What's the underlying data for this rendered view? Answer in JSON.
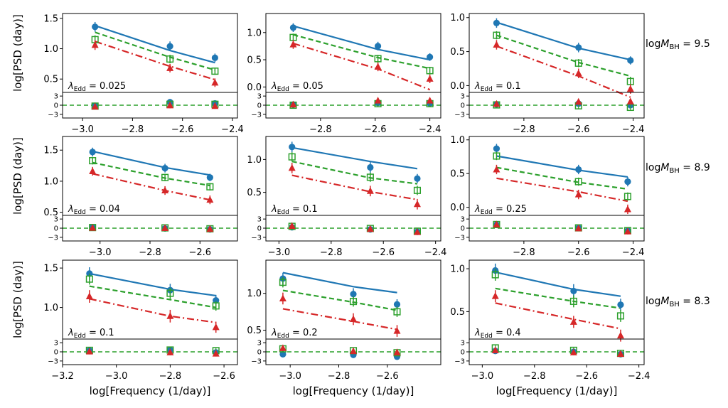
{
  "figure": {
    "y_label": "log[PSD (day)]",
    "x_label": "log[Frequency (1/day)]",
    "lambda_prefix": "λ",
    "lambda_sub": "Edd",
    "lambda_eq": " = ",
    "mass_prefix": "logM",
    "mass_sub": "BH",
    "mass_eq": " = ",
    "residual_ticks": [
      "3",
      "0",
      "−3"
    ],
    "residual_values": [
      3,
      0,
      -3
    ],
    "colors": {
      "blue": "#1f77b4",
      "green": "#2ca02c",
      "red": "#d62728"
    }
  },
  "rows": [
    {
      "mass_label": "9.5"
    },
    {
      "mass_label": "8.9"
    },
    {
      "mass_label": "8.3"
    }
  ],
  "chart_data": [
    {
      "type": "line",
      "row": 0,
      "col": 0,
      "lambda_label": "0.025",
      "xlim": [
        -3.08,
        -2.38
      ],
      "ylim": [
        0.28,
        1.58
      ],
      "x_ticks": [
        -3.0,
        -2.8,
        -2.6,
        -2.4
      ],
      "x_tick_labels": [
        "−3.0",
        "−2.8",
        "−2.6",
        "−2.4"
      ],
      "y_ticks": [
        0.5,
        1.0,
        1.5
      ],
      "y_tick_labels": [
        "0.5",
        "1.0",
        "1.5"
      ],
      "x": [
        -2.95,
        -2.65,
        -2.47
      ],
      "series": [
        {
          "color": "blue",
          "marker": "circle",
          "line": "solid",
          "points": [
            1.36,
            1.04,
            0.85
          ],
          "errors": [
            0.08,
            0.08,
            0.07
          ],
          "model": [
            1.38,
            0.97,
            0.77
          ],
          "residuals": [
            -0.2,
            1.0,
            0.6
          ]
        },
        {
          "color": "green",
          "marker": "square",
          "line": "dashed",
          "points": [
            1.15,
            0.83,
            0.63
          ],
          "errors": [
            0.07,
            0.07,
            0.06
          ],
          "model": [
            1.27,
            0.86,
            0.65
          ],
          "residuals": [
            -0.3,
            0.3,
            0.3
          ]
        },
        {
          "color": "red",
          "marker": "triangle",
          "line": "dashdot",
          "points": [
            1.06,
            0.68,
            0.44
          ],
          "errors": [
            0.08,
            0.07,
            0.07
          ],
          "model": [
            1.12,
            0.71,
            0.49
          ],
          "residuals": [
            -0.5,
            -0.1,
            -0.3
          ]
        }
      ]
    },
    {
      "type": "line",
      "row": 0,
      "col": 1,
      "lambda_label": "0.05",
      "xlim": [
        -3.0,
        -2.36
      ],
      "ylim": [
        -0.1,
        1.35
      ],
      "x_ticks": [
        -2.8,
        -2.6,
        -2.4
      ],
      "x_tick_labels": [
        "−2.8",
        "−2.6",
        "−2.4"
      ],
      "y_ticks": [
        0.0,
        0.5,
        1.0
      ],
      "y_tick_labels": [
        "0.0",
        "0.5",
        "1.0"
      ],
      "x": [
        -2.9,
        -2.59,
        -2.4
      ],
      "series": [
        {
          "color": "blue",
          "marker": "circle",
          "line": "solid",
          "points": [
            1.09,
            0.75,
            0.55
          ],
          "errors": [
            0.08,
            0.08,
            0.07
          ],
          "model": [
            1.12,
            0.69,
            0.5
          ],
          "residuals": [
            0.2,
            0.8,
            0.6
          ]
        },
        {
          "color": "green",
          "marker": "square",
          "line": "dashed",
          "points": [
            0.91,
            0.52,
            0.3
          ],
          "errors": [
            0.07,
            0.07,
            0.07
          ],
          "model": [
            0.96,
            0.54,
            0.34
          ],
          "residuals": [
            0.0,
            0.5,
            0.5
          ]
        },
        {
          "color": "red",
          "marker": "triangle",
          "line": "dashdot",
          "points": [
            0.78,
            0.37,
            0.15
          ],
          "errors": [
            0.08,
            0.08,
            0.08
          ],
          "model": [
            0.8,
            0.33,
            -0.05
          ],
          "residuals": [
            0.2,
            1.5,
            1.5
          ]
        }
      ]
    },
    {
      "type": "line",
      "row": 0,
      "col": 2,
      "lambda_label": "0.1",
      "xlim": [
        -3.0,
        -2.36
      ],
      "ylim": [
        -0.1,
        1.06
      ],
      "x_ticks": [
        -2.8,
        -2.6,
        -2.4
      ],
      "x_tick_labels": [
        "−2.8",
        "−2.6",
        "−2.4"
      ],
      "y_ticks": [
        0.0,
        0.5,
        1.0
      ],
      "y_tick_labels": [
        "0.0",
        "0.5",
        "1.0"
      ],
      "x": [
        -2.9,
        -2.6,
        -2.41
      ],
      "series": [
        {
          "color": "blue",
          "marker": "circle",
          "line": "solid",
          "points": [
            0.92,
            0.56,
            0.37
          ],
          "errors": [
            0.07,
            0.07,
            0.06
          ],
          "model": [
            0.93,
            0.55,
            0.38
          ],
          "residuals": [
            0.3,
            0.5,
            0.0
          ]
        },
        {
          "color": "green",
          "marker": "square",
          "line": "dashed",
          "points": [
            0.74,
            0.33,
            0.06
          ],
          "errors": [
            0.06,
            0.06,
            0.07
          ],
          "model": [
            0.74,
            0.34,
            0.14
          ],
          "residuals": [
            0.1,
            -0.2,
            -0.7
          ]
        },
        {
          "color": "red",
          "marker": "triangle",
          "line": "dashdot",
          "points": [
            0.6,
            0.18,
            -0.05
          ],
          "errors": [
            0.07,
            0.07,
            0.07
          ],
          "model": [
            0.58,
            0.14,
            -0.17
          ],
          "residuals": [
            0.4,
            1.1,
            1.2
          ]
        }
      ]
    },
    {
      "type": "line",
      "row": 1,
      "col": 0,
      "lambda_label": "0.04",
      "xlim": [
        -3.15,
        -2.45
      ],
      "ylim": [
        0.45,
        1.72
      ],
      "x_ticks": [
        -3.0,
        -2.8,
        -2.6
      ],
      "x_tick_labels": [
        "−3.0",
        "−2.8",
        "−2.6"
      ],
      "y_ticks": [
        0.5,
        1.0,
        1.5
      ],
      "y_tick_labels": [
        "0.5",
        "1.0",
        "1.5"
      ],
      "x": [
        -3.03,
        -2.74,
        -2.56
      ],
      "series": [
        {
          "color": "blue",
          "marker": "circle",
          "line": "solid",
          "points": [
            1.47,
            1.21,
            1.06
          ],
          "errors": [
            0.07,
            0.07,
            0.06
          ],
          "model": [
            1.48,
            1.22,
            1.1
          ],
          "residuals": [
            0.3,
            -0.1,
            -0.4
          ]
        },
        {
          "color": "green",
          "marker": "square",
          "line": "dashed",
          "points": [
            1.33,
            1.06,
            0.91
          ],
          "errors": [
            0.06,
            0.06,
            0.06
          ],
          "model": [
            1.3,
            1.05,
            0.93
          ],
          "residuals": [
            0.2,
            0.1,
            -0.2
          ]
        },
        {
          "color": "red",
          "marker": "triangle",
          "line": "dashdot",
          "points": [
            1.16,
            0.85,
            0.7
          ],
          "errors": [
            0.07,
            0.07,
            0.07
          ],
          "model": [
            1.12,
            0.85,
            0.7
          ],
          "residuals": [
            0.1,
            0.0,
            -0.3
          ]
        }
      ]
    },
    {
      "type": "line",
      "row": 1,
      "col": 1,
      "lambda_label": "0.1",
      "xlim": [
        -3.05,
        -2.38
      ],
      "ylim": [
        0.15,
        1.35
      ],
      "x_ticks": [
        -3.0,
        -2.8,
        -2.6,
        -2.4
      ],
      "x_tick_labels": [
        "−3.0",
        "−2.8",
        "−2.6",
        "−2.4"
      ],
      "y_ticks": [
        0.5,
        1.0
      ],
      "y_tick_labels": [
        "0.5",
        "1.0"
      ],
      "x": [
        -2.95,
        -2.65,
        -2.47
      ],
      "series": [
        {
          "color": "blue",
          "marker": "circle",
          "line": "solid",
          "points": [
            1.19,
            0.88,
            0.71
          ],
          "errors": [
            0.08,
            0.08,
            0.07
          ],
          "model": [
            1.18,
            0.97,
            0.86
          ],
          "residuals": [
            0.3,
            -0.4,
            -1.2
          ]
        },
        {
          "color": "green",
          "marker": "square",
          "line": "dashed",
          "points": [
            1.04,
            0.73,
            0.53
          ],
          "errors": [
            0.07,
            0.07,
            0.07
          ],
          "model": [
            0.97,
            0.72,
            0.63
          ],
          "residuals": [
            0.6,
            -0.1,
            -1.0
          ]
        },
        {
          "color": "red",
          "marker": "triangle",
          "line": "dashdot",
          "points": [
            0.87,
            0.52,
            0.32
          ],
          "errors": [
            0.08,
            0.08,
            0.08
          ],
          "model": [
            0.76,
            0.51,
            0.39
          ],
          "residuals": [
            0.7,
            -0.3,
            -1.3
          ]
        }
      ]
    },
    {
      "type": "line",
      "row": 1,
      "col": 2,
      "lambda_label": "0.25",
      "xlim": [
        -3.0,
        -2.36
      ],
      "ylim": [
        -0.12,
        1.05
      ],
      "x_ticks": [
        -2.8,
        -2.6,
        -2.4
      ],
      "x_tick_labels": [
        "−2.8",
        "−2.6",
        "−2.4"
      ],
      "y_ticks": [
        0.0,
        0.5,
        1.0
      ],
      "y_tick_labels": [
        "0.0",
        "0.5",
        "1.0"
      ],
      "x": [
        -2.9,
        -2.6,
        -2.42
      ],
      "series": [
        {
          "color": "blue",
          "marker": "circle",
          "line": "solid",
          "points": [
            0.87,
            0.56,
            0.38
          ],
          "errors": [
            0.07,
            0.07,
            0.07
          ],
          "model": [
            0.76,
            0.55,
            0.45
          ],
          "residuals": [
            1.1,
            0.1,
            -0.9
          ]
        },
        {
          "color": "green",
          "marker": "square",
          "line": "dashed",
          "points": [
            0.76,
            0.38,
            0.16
          ],
          "errors": [
            0.06,
            0.06,
            0.06
          ],
          "model": [
            0.59,
            0.37,
            0.27
          ],
          "residuals": [
            1.2,
            0.1,
            -0.8
          ]
        },
        {
          "color": "red",
          "marker": "triangle",
          "line": "dashdot",
          "points": [
            0.56,
            0.19,
            -0.03
          ],
          "errors": [
            0.07,
            0.07,
            0.07
          ],
          "model": [
            0.43,
            0.23,
            0.09
          ],
          "residuals": [
            1.2,
            -0.1,
            -1.1
          ]
        }
      ]
    },
    {
      "type": "line",
      "row": 2,
      "col": 0,
      "lambda_label": "0.1",
      "xlim": [
        -3.2,
        -2.55
      ],
      "ylim": [
        0.6,
        1.6
      ],
      "x_ticks": [
        -3.2,
        -3.0,
        -2.8,
        -2.6
      ],
      "x_tick_labels": [
        "−3.2",
        "−3.0",
        "−2.8",
        "−2.6"
      ],
      "y_ticks": [
        1.0,
        1.5
      ],
      "y_tick_labels": [
        "1.0",
        "1.5"
      ],
      "x": [
        -3.1,
        -2.8,
        -2.63
      ],
      "series": [
        {
          "color": "blue",
          "marker": "circle",
          "line": "solid",
          "points": [
            1.43,
            1.22,
            1.09
          ],
          "errors": [
            0.08,
            0.08,
            0.07
          ],
          "model": [
            1.43,
            1.23,
            1.15
          ],
          "residuals": [
            0.4,
            0.6,
            -0.2
          ]
        },
        {
          "color": "green",
          "marker": "square",
          "line": "dashed",
          "points": [
            1.36,
            1.18,
            1.02
          ],
          "errors": [
            0.07,
            0.07,
            0.06
          ],
          "model": [
            1.27,
            1.1,
            1.0
          ],
          "residuals": [
            0.5,
            0.6,
            0.4
          ]
        },
        {
          "color": "red",
          "marker": "triangle",
          "line": "dashdot",
          "points": [
            1.14,
            0.89,
            0.75
          ],
          "errors": [
            0.08,
            0.08,
            0.07
          ],
          "model": [
            1.11,
            0.89,
            0.81
          ],
          "residuals": [
            0.1,
            -0.2,
            -0.6
          ]
        }
      ]
    },
    {
      "type": "line",
      "row": 2,
      "col": 1,
      "lambda_label": "0.2",
      "xlim": [
        -3.1,
        -2.38
      ],
      "ylim": [
        0.38,
        1.45
      ],
      "x_ticks": [
        -3.0,
        -2.8,
        -2.6
      ],
      "x_tick_labels": [
        "−3.0",
        "−2.8",
        "−2.6"
      ],
      "y_ticks": [
        0.5,
        1.0
      ],
      "y_tick_labels": [
        "0.5",
        "1.0"
      ],
      "x": [
        -3.03,
        -2.74,
        -2.56
      ],
      "series": [
        {
          "color": "blue",
          "marker": "circle",
          "line": "solid",
          "points": [
            1.2,
            0.99,
            0.85
          ],
          "errors": [
            0.08,
            0.08,
            0.07
          ],
          "model": [
            1.28,
            1.09,
            1.01
          ],
          "residuals": [
            -0.8,
            -1.0,
            -1.6
          ]
        },
        {
          "color": "green",
          "marker": "square",
          "line": "dashed",
          "points": [
            1.15,
            0.89,
            0.75
          ],
          "errors": [
            0.07,
            0.07,
            0.07
          ],
          "model": [
            1.04,
            0.88,
            0.77
          ],
          "residuals": [
            1.0,
            0.4,
            -0.3
          ]
        },
        {
          "color": "red",
          "marker": "triangle",
          "line": "dashdot",
          "points": [
            0.93,
            0.65,
            0.49
          ],
          "errors": [
            0.08,
            0.08,
            0.08
          ],
          "model": [
            0.79,
            0.62,
            0.51
          ],
          "residuals": [
            1.2,
            0.2,
            -0.2
          ]
        }
      ]
    },
    {
      "type": "line",
      "row": 2,
      "col": 2,
      "lambda_label": "0.4",
      "xlim": [
        -3.05,
        -2.38
      ],
      "ylim": [
        0.18,
        1.1
      ],
      "x_ticks": [
        -3.0,
        -2.8,
        -2.6,
        -2.4
      ],
      "x_tick_labels": [
        "−3.0",
        "−2.8",
        "−2.6",
        "−2.4"
      ],
      "y_ticks": [
        0.5,
        1.0
      ],
      "y_tick_labels": [
        "0.5",
        "1.0"
      ],
      "x": [
        -2.95,
        -2.65,
        -2.47
      ],
      "series": [
        {
          "color": "blue",
          "marker": "circle",
          "line": "solid",
          "points": [
            0.98,
            0.74,
            0.58
          ],
          "errors": [
            0.08,
            0.08,
            0.07
          ],
          "model": [
            0.96,
            0.76,
            0.68
          ],
          "residuals": [
            0.3,
            0.0,
            -0.8
          ]
        },
        {
          "color": "green",
          "marker": "square",
          "line": "dashed",
          "points": [
            0.93,
            0.62,
            0.45
          ],
          "errors": [
            0.07,
            0.07,
            0.07
          ],
          "model": [
            0.77,
            0.62,
            0.54
          ],
          "residuals": [
            1.3,
            0.5,
            -0.5
          ]
        },
        {
          "color": "red",
          "marker": "triangle",
          "line": "dashdot",
          "points": [
            0.68,
            0.38,
            0.22
          ],
          "errors": [
            0.07,
            0.07,
            0.07
          ],
          "model": [
            0.6,
            0.41,
            0.3
          ],
          "residuals": [
            0.5,
            -0.2,
            -0.7
          ]
        }
      ]
    }
  ]
}
